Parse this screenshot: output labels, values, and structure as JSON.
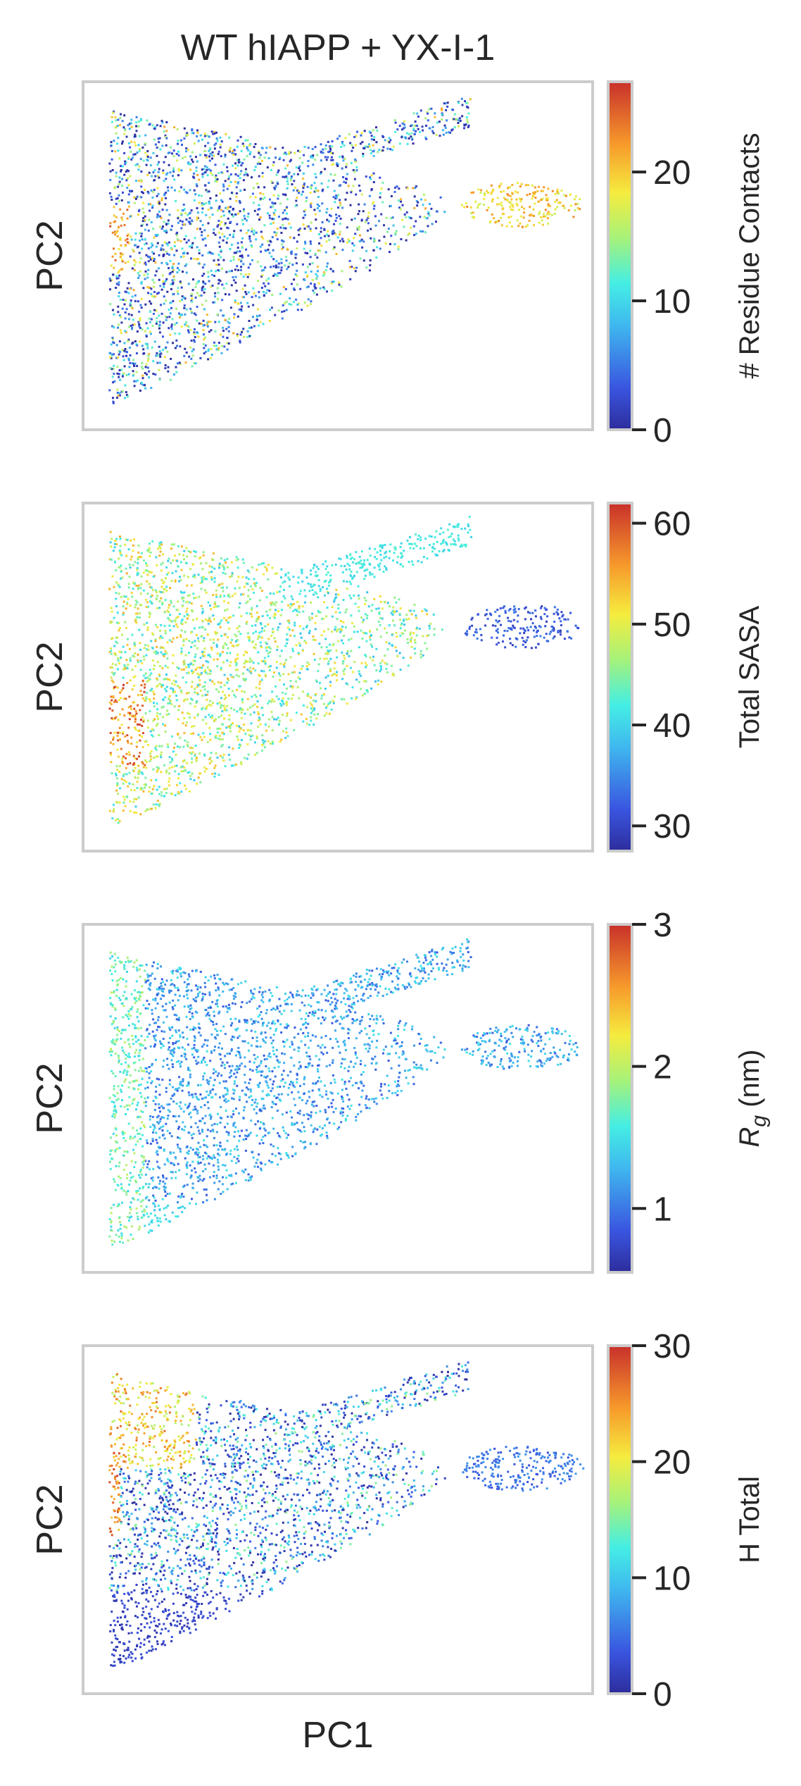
{
  "figure": {
    "title": "WT hIAPP + YX-I-1",
    "xlabel": "PC1"
  },
  "colormap": "jet",
  "chart_data": [
    {
      "type": "scatter",
      "panel": "residue-contacts",
      "ylabel": "PC2",
      "xlabel": "",
      "colorbar_label": "# Residue Contacts",
      "colorbar_ticks": [
        "0",
        "10",
        "20"
      ],
      "colorbar_tick_values": [
        0,
        10,
        20
      ],
      "color_range": [
        0,
        27
      ],
      "grid": false,
      "x_ticks_shown": false,
      "y_ticks_shown": false
    },
    {
      "type": "scatter",
      "panel": "total-sasa",
      "ylabel": "PC2",
      "xlabel": "",
      "colorbar_label": "Total SASA",
      "colorbar_ticks": [
        "30",
        "40",
        "50",
        "60"
      ],
      "colorbar_tick_values": [
        30,
        40,
        50,
        60
      ],
      "color_range": [
        27.5,
        62
      ],
      "grid": false,
      "x_ticks_shown": false,
      "y_ticks_shown": false
    },
    {
      "type": "scatter",
      "panel": "radius-of-gyration",
      "ylabel": "PC2",
      "xlabel": "",
      "colorbar_label_symbol": "R",
      "colorbar_label_sub": "g",
      "colorbar_label_unit": " (nm)",
      "colorbar_ticks": [
        "1",
        "2",
        "3"
      ],
      "colorbar_tick_values": [
        1,
        2,
        3
      ],
      "color_range": [
        0.55,
        3
      ],
      "grid": false,
      "x_ticks_shown": false,
      "y_ticks_shown": false
    },
    {
      "type": "scatter",
      "panel": "h-total",
      "ylabel": "PC2",
      "xlabel": "PC1",
      "colorbar_label": "H Total",
      "colorbar_ticks": [
        "0",
        "10",
        "20",
        "30"
      ],
      "colorbar_tick_values": [
        0,
        10,
        20,
        30
      ],
      "color_range": [
        0,
        30
      ],
      "grid": false,
      "x_ticks_shown": false,
      "y_ticks_shown": false
    }
  ]
}
